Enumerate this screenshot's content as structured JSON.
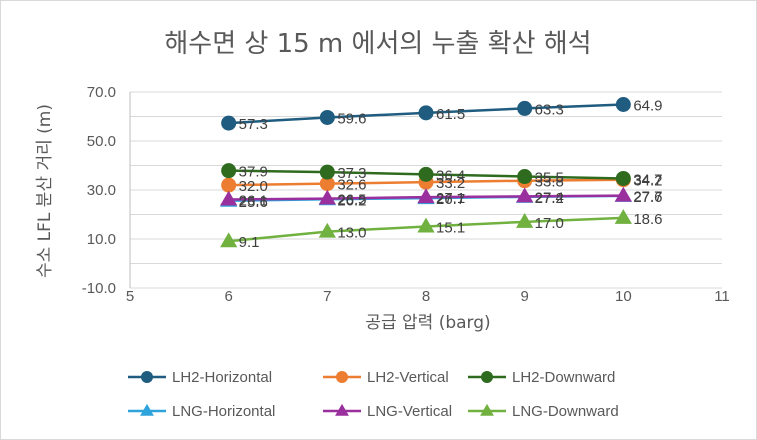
{
  "chart_data": {
    "type": "scatter",
    "title": "해수면 상 15 m 에서의 누출 확산 해석",
    "xlabel": "공급 압력 (barg)",
    "ylabel": "수소 LFL 분산 거리 (m)",
    "xlim": [
      5,
      11
    ],
    "ylim": [
      -10,
      70
    ],
    "x_ticks": [
      "5",
      "6",
      "7",
      "8",
      "9",
      "10",
      "11"
    ],
    "y_ticks": [
      "-10.0",
      "10.0",
      "30.0",
      "50.0",
      "70.0"
    ],
    "grid": "horizontal",
    "legend_position": "bottom",
    "x": [
      6,
      7,
      8,
      9,
      10
    ],
    "series": [
      {
        "name": "LH2-Horizontal",
        "marker": "circle",
        "color": "#1f5c7f",
        "values": [
          57.3,
          59.6,
          61.5,
          63.3,
          64.9
        ],
        "labels": [
          "57.3",
          "59.6",
          "61.5",
          "63.3",
          "64.9"
        ]
      },
      {
        "name": "LH2-Vertical",
        "marker": "circle",
        "color": "#ed7d31",
        "values": [
          32.0,
          32.6,
          33.2,
          33.8,
          34.2
        ],
        "labels": [
          "32.0",
          "32.6",
          "33.2",
          "33.8",
          "34.2"
        ]
      },
      {
        "name": "LH2-Downward",
        "marker": "circle",
        "color": "#2e6b1f",
        "values": [
          37.9,
          37.3,
          36.4,
          35.5,
          34.7
        ],
        "labels": [
          "37.9",
          "37.3",
          "36.4",
          "35.5",
          "34.7"
        ]
      },
      {
        "name": "LNG-Horizontal",
        "marker": "triangle",
        "color": "#2ea3dc",
        "values": [
          25.6,
          26.2,
          26.7,
          27.2,
          27.6
        ],
        "labels": [
          "25.6",
          "26.2",
          "26.7",
          "27.2",
          "27.6"
        ]
      },
      {
        "name": "LNG-Vertical",
        "marker": "triangle",
        "color": "#9a2f9e",
        "values": [
          26.1,
          26.5,
          27.1,
          27.4,
          27.7
        ],
        "labels": [
          "26.1",
          "26.5",
          "27.1",
          "27.4",
          "27.7"
        ]
      },
      {
        "name": "LNG-Downward",
        "marker": "triangle",
        "color": "#70b13f",
        "values": [
          9.1,
          13.0,
          15.1,
          17.0,
          18.6
        ],
        "labels": [
          "9.1",
          "13.0",
          "15.1",
          "17.0",
          "18.6"
        ]
      }
    ]
  },
  "colors": {
    "gridline": "#d9d9d9",
    "axis": "#bfbfbf",
    "text": "#595959"
  }
}
